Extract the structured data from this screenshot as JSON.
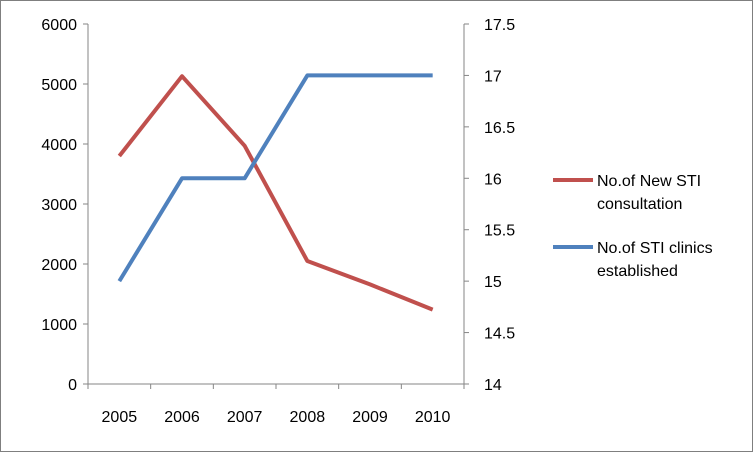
{
  "chart_data": {
    "type": "line",
    "title": "",
    "xlabel": "",
    "ylabel": "",
    "categories": [
      "2005",
      "2006",
      "2007",
      "2008",
      "2009",
      "2010"
    ],
    "y_left": {
      "min": 0,
      "max": 6000,
      "step": 1000,
      "ticks": [
        "0",
        "1000",
        "2000",
        "3000",
        "4000",
        "5000",
        "6000"
      ]
    },
    "y_right": {
      "min": 14,
      "max": 17.5,
      "step": 0.5,
      "ticks": [
        "14",
        "14.5",
        "15",
        "15.5",
        "16",
        "16.5",
        "17",
        "17.5"
      ]
    },
    "series": [
      {
        "name": "No.of New STI consultation",
        "name_lines": [
          "No.of New STI",
          "consultation"
        ],
        "axis": "left",
        "color": "#c0504d",
        "values": [
          3800,
          5130,
          3970,
          2050,
          1660,
          1240
        ]
      },
      {
        "name": "No.of STI clinics established",
        "name_lines": [
          "No.of STI clinics",
          "established"
        ],
        "axis": "right",
        "color": "#4f81bd",
        "values": [
          15,
          16,
          16,
          17,
          17,
          17
        ]
      }
    ],
    "legend_position": "right",
    "grid": false
  }
}
